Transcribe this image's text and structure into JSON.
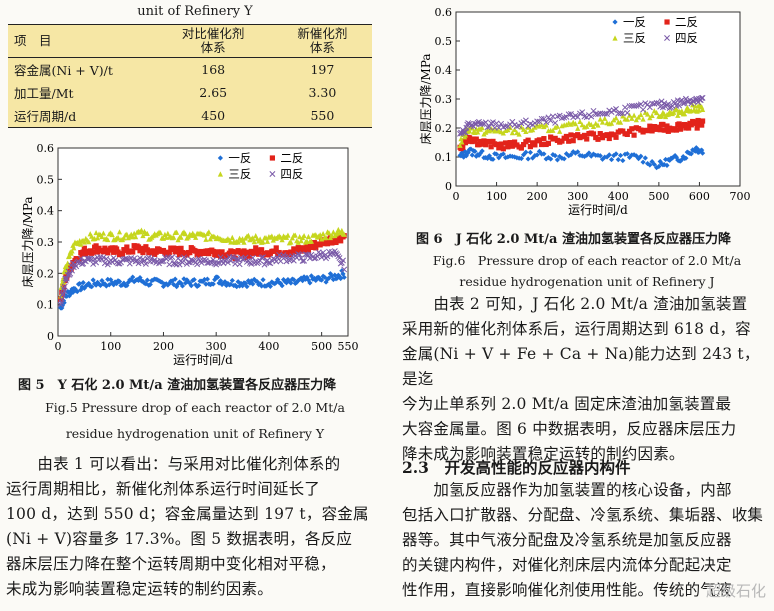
{
  "table_caption": "unit of Refinery Y",
  "table": {
    "headers": [
      "项　目",
      "对比催化剂\n体系",
      "新催化剂\n体系"
    ],
    "rows": [
      [
        "容金属(Ni + V)/t",
        "168",
        "197"
      ],
      [
        "加工量/Mt",
        "2.65",
        "3.30"
      ],
      [
        "运行周期/d",
        "450",
        "550"
      ]
    ],
    "bg_color": "#f6e7a5"
  },
  "fig5": {
    "title_cn": "图 5　Y 石化 2.0 Mt/a 渣油加氢装置各反应器压力降",
    "title_en_1": "Fig.5 Pressure drop of each reactor of 2.0 Mt/a",
    "title_en_2": "residue hydrogenation unit of Refinery Y"
  },
  "fig6": {
    "title_cn": "图 6　J 石化 2.0 Mt/a 渣油加氢装置各反应器压力降",
    "title_en_1": "Fig.6　Pressure drop of each reactor of 2.0 Mt/a",
    "title_en_2": "residue hydrogenation unit of Refinery J"
  },
  "left_para": [
    "　　由表 1 可以看出：与采用对比催化剂体系的",
    "运行周期相比，新催化剂体系运行时间延长了",
    "100 d，达到 550 d；容金属量达到 197 t，容金属",
    "(Ni + V)容量多 17.3%。图 5 数据表明，各反应",
    "器床层压力降在整个运转周期中变化相对平稳，",
    "未成为影响装置稳定运转的制约因素。"
  ],
  "right_para": [
    "　　由表 2 可知，J 石化 2.0 Mt/a 渣油加氢装置",
    "采用新的催化剂体系后，运行周期达到 618 d，容",
    "金属(Ni + V + Fe + Ca + Na)能力达到 243 t，是迄",
    "今为止单系列 2.0 Mt/a 固定床渣油加氢装置最",
    "大容金属量。图 6 中数据表明，反应器床层压力",
    "降未成为影响装置稳定运转的制约因素。"
  ],
  "section_title": "2.3　开发高性能的反应器内构件",
  "section_para": [
    "　　加氢反应器作为加氢装置的核心设备，内部",
    "包括入口扩散器、分配盘、冷氢系统、集垢器、收集",
    "器等。其中气液分配盘及冷氢系统是加氢反应器",
    "的关键内构件，对催化剂床层内流体分配起决定",
    "性作用，直接影响催化剂使用性能。传统的气液"
  ],
  "watermark": "超级石化",
  "chart_data": [
    {
      "type": "scatter",
      "title": "",
      "xlabel": "运行时间/d",
      "ylabel": "床层压力降/MPa",
      "xlim": [
        0,
        550
      ],
      "ylim": [
        0,
        0.6
      ],
      "xticks": [
        0,
        100,
        200,
        300,
        400,
        500,
        550
      ],
      "yticks": [
        0,
        0.1,
        0.2,
        0.3,
        0.4,
        0.5,
        0.6
      ],
      "legend_position": "top-right",
      "series": [
        {
          "name": "一反",
          "color": "#1f6fd6",
          "marker": "diamond",
          "x": [
            5,
            15,
            30,
            50,
            75,
            100,
            125,
            150,
            175,
            200,
            225,
            250,
            275,
            300,
            325,
            350,
            375,
            400,
            425,
            450,
            475,
            500,
            525,
            545
          ],
          "y": [
            0.09,
            0.13,
            0.15,
            0.16,
            0.17,
            0.17,
            0.17,
            0.18,
            0.17,
            0.17,
            0.17,
            0.17,
            0.17,
            0.18,
            0.17,
            0.17,
            0.17,
            0.17,
            0.17,
            0.17,
            0.18,
            0.18,
            0.19,
            0.2
          ]
        },
        {
          "name": "二反",
          "color": "#e2231a",
          "marker": "square",
          "x": [
            5,
            15,
            30,
            50,
            75,
            100,
            125,
            150,
            175,
            200,
            225,
            250,
            275,
            300,
            325,
            350,
            375,
            400,
            425,
            450,
            475,
            500,
            525,
            545
          ],
          "y": [
            0.12,
            0.19,
            0.24,
            0.27,
            0.28,
            0.27,
            0.27,
            0.28,
            0.27,
            0.27,
            0.27,
            0.27,
            0.27,
            0.27,
            0.26,
            0.26,
            0.27,
            0.27,
            0.27,
            0.27,
            0.28,
            0.3,
            0.31,
            0.32
          ]
        },
        {
          "name": "三反",
          "color": "#c6d61e",
          "marker": "triangle",
          "x": [
            5,
            15,
            30,
            50,
            75,
            100,
            125,
            150,
            175,
            200,
            225,
            250,
            275,
            300,
            325,
            350,
            375,
            400,
            425,
            450,
            475,
            500,
            525,
            545
          ],
          "y": [
            0.14,
            0.22,
            0.29,
            0.31,
            0.32,
            0.32,
            0.32,
            0.33,
            0.32,
            0.32,
            0.32,
            0.32,
            0.32,
            0.32,
            0.31,
            0.31,
            0.31,
            0.31,
            0.31,
            0.31,
            0.31,
            0.32,
            0.33,
            0.33
          ]
        },
        {
          "name": "四反",
          "color": "#7a5aa8",
          "marker": "x",
          "x": [
            5,
            15,
            30,
            50,
            75,
            100,
            125,
            150,
            175,
            200,
            225,
            250,
            275,
            300,
            325,
            350,
            375,
            400,
            425,
            450,
            475,
            500,
            525,
            545
          ],
          "y": [
            0.11,
            0.18,
            0.23,
            0.24,
            0.24,
            0.24,
            0.24,
            0.24,
            0.24,
            0.24,
            0.24,
            0.24,
            0.24,
            0.24,
            0.24,
            0.24,
            0.24,
            0.24,
            0.25,
            0.25,
            0.25,
            0.26,
            0.26,
            0.22
          ]
        }
      ]
    },
    {
      "type": "scatter",
      "title": "",
      "xlabel": "运行时间/d",
      "ylabel": "床层压力降/MPa",
      "xlim": [
        0,
        700
      ],
      "ylim": [
        0,
        0.6
      ],
      "xticks": [
        0,
        100,
        200,
        300,
        400,
        500,
        600,
        700
      ],
      "yticks": [
        0,
        0.1,
        0.2,
        0.3,
        0.4,
        0.5,
        0.6
      ],
      "legend_position": "top-right",
      "series": [
        {
          "name": "一反",
          "color": "#1f6fd6",
          "marker": "diamond",
          "x": [
            10,
            30,
            60,
            100,
            150,
            200,
            250,
            300,
            350,
            400,
            450,
            500,
            530,
            560,
            590,
            610
          ],
          "y": [
            0.1,
            0.12,
            0.11,
            0.1,
            0.1,
            0.11,
            0.1,
            0.11,
            0.1,
            0.1,
            0.1,
            0.07,
            0.09,
            0.1,
            0.13,
            0.12
          ]
        },
        {
          "name": "二反",
          "color": "#e2231a",
          "marker": "square",
          "x": [
            10,
            30,
            60,
            100,
            150,
            200,
            250,
            300,
            350,
            400,
            450,
            500,
            530,
            560,
            590,
            610
          ],
          "y": [
            0.13,
            0.17,
            0.15,
            0.14,
            0.14,
            0.15,
            0.16,
            0.17,
            0.17,
            0.18,
            0.19,
            0.2,
            0.2,
            0.21,
            0.21,
            0.22
          ]
        },
        {
          "name": "三反",
          "color": "#c6d61e",
          "marker": "triangle",
          "x": [
            10,
            30,
            60,
            100,
            150,
            200,
            250,
            300,
            350,
            400,
            450,
            500,
            530,
            560,
            590,
            610
          ],
          "y": [
            0.15,
            0.2,
            0.19,
            0.19,
            0.19,
            0.2,
            0.2,
            0.21,
            0.22,
            0.23,
            0.24,
            0.25,
            0.25,
            0.26,
            0.27,
            0.27
          ]
        },
        {
          "name": "四反",
          "color": "#7a5aa8",
          "marker": "x",
          "x": [
            10,
            30,
            60,
            100,
            150,
            200,
            250,
            300,
            350,
            400,
            450,
            500,
            530,
            560,
            590,
            610
          ],
          "y": [
            0.17,
            0.21,
            0.21,
            0.21,
            0.21,
            0.22,
            0.23,
            0.24,
            0.25,
            0.26,
            0.27,
            0.28,
            0.28,
            0.29,
            0.3,
            0.3
          ]
        }
      ]
    }
  ]
}
